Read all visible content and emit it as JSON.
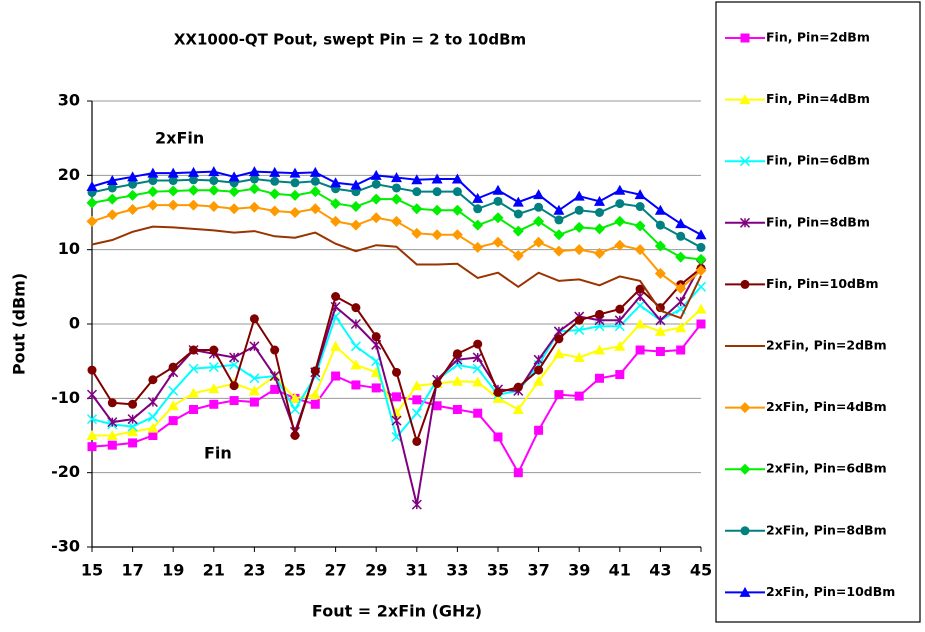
{
  "chart_data": {
    "type": "line",
    "title": "XX1000-QT Pout, swept Pin = 2 to 10dBm",
    "x_label": "Fout = 2xFin (GHz)",
    "y_label": "Pout (dBm)",
    "annotations": [
      "2xFin",
      "Fin"
    ],
    "x": [
      15,
      16,
      17,
      18,
      19,
      20,
      21,
      22,
      23,
      24,
      25,
      26,
      27,
      28,
      29,
      30,
      31,
      32,
      33,
      34,
      35,
      36,
      37,
      38,
      39,
      40,
      41,
      42,
      43,
      44,
      45
    ],
    "xlim": [
      15,
      45
    ],
    "xticks": [
      15,
      17,
      19,
      21,
      23,
      25,
      27,
      29,
      31,
      33,
      35,
      37,
      39,
      41,
      43,
      45
    ],
    "ylim": [
      -30,
      30
    ],
    "yticks": [
      -30,
      -20,
      -10,
      0,
      10,
      20,
      30
    ],
    "grid": true,
    "legend": "right",
    "series": [
      {
        "name": "Fin, Pin=2dBm",
        "color": "#ff00ff",
        "marker": "square",
        "values": [
          -16.5,
          -16.3,
          -16,
          -15,
          -13,
          -11.5,
          -10.8,
          -10.3,
          -10.5,
          -8.8,
          -10,
          -10.8,
          -7,
          -8.2,
          -8.6,
          -9.8,
          -10.2,
          -11,
          -11.5,
          -12,
          -15.2,
          -20,
          -14.3,
          -9.5,
          -9.7,
          -7.3,
          -6.8,
          -3.5,
          -3.7,
          -3.5,
          0
        ]
      },
      {
        "name": "Fin, Pin=4dBm",
        "color": "#ffff00",
        "marker": "triangle",
        "values": [
          -15,
          -15,
          -14.5,
          -14,
          -11,
          -9.3,
          -8.7,
          -8,
          -9,
          -7,
          -10,
          -9.5,
          -3,
          -5.5,
          -6.5,
          -12,
          -8.3,
          -8,
          -7.7,
          -7.8,
          -10,
          -11.5,
          -7.7,
          -4,
          -4.5,
          -3.5,
          -3,
          0,
          -1,
          -0.5,
          2
        ]
      },
      {
        "name": "Fin, Pin=6dBm",
        "color": "#00ffff",
        "marker": "x",
        "values": [
          -12.8,
          -13.5,
          -13.8,
          -12.5,
          -9,
          -6,
          -5.8,
          -5.5,
          -7.3,
          -7,
          -11.5,
          -7,
          1,
          -3,
          -5,
          -15.2,
          -12,
          -7.5,
          -5.5,
          -6,
          -9.5,
          -9,
          -5.5,
          -1,
          -0.8,
          -0.3,
          -0.3,
          2.5,
          0.5,
          2,
          5
        ]
      },
      {
        "name": "Fin, Pin=8dBm",
        "color": "#800080",
        "marker": "star",
        "values": [
          -9.5,
          -13.2,
          -12.8,
          -10.5,
          -6.5,
          -3.5,
          -4,
          -4.5,
          -3,
          -7,
          -14.5,
          -6.5,
          2.3,
          0,
          -2.8,
          -13,
          -24.3,
          -7.5,
          -4.8,
          -4.5,
          -8.8,
          -9,
          -4.8,
          -1,
          1,
          0.5,
          0.5,
          3.7,
          0.5,
          3,
          8
        ]
      },
      {
        "name": "Fin, Pin=10dBm",
        "color": "#800000",
        "marker": "circle",
        "values": [
          -6.2,
          -10.6,
          -10.8,
          -7.5,
          -5.8,
          -3.5,
          -3.5,
          -8.3,
          0.7,
          -3.5,
          -15,
          -6.3,
          3.7,
          2.2,
          -1.7,
          -6.5,
          -15.8,
          -8,
          -4,
          -2.7,
          -9.2,
          -8.5,
          -6.2,
          -2,
          0.5,
          1.3,
          2,
          4.7,
          2.2,
          5.3,
          7.5
        ]
      },
      {
        "name": "2xFin, Pin=2dBm",
        "color": "#993300",
        "marker": "none",
        "values": [
          10.7,
          11.3,
          12.4,
          13.1,
          13,
          12.8,
          12.6,
          12.3,
          12.5,
          11.8,
          11.6,
          12.3,
          10.8,
          9.8,
          10.6,
          10.4,
          8,
          8,
          8.1,
          6.2,
          6.9,
          5,
          6.9,
          5.8,
          6,
          5.2,
          6.4,
          5.8,
          1.8,
          0.8,
          6.5
        ]
      },
      {
        "name": "2xFin, Pin=4dBm",
        "color": "#ff9900",
        "marker": "diamond",
        "values": [
          13.8,
          14.7,
          15.4,
          16,
          16,
          16,
          15.8,
          15.5,
          15.7,
          15.2,
          15,
          15.5,
          13.8,
          13.3,
          14.3,
          13.8,
          12.2,
          12,
          12,
          10.3,
          11,
          9.2,
          11,
          9.8,
          10,
          9.5,
          10.6,
          10,
          6.8,
          4.8,
          7.2
        ]
      },
      {
        "name": "2xFin, Pin=6dBm",
        "color": "#00ee00",
        "marker": "diamond",
        "values": [
          16.3,
          16.8,
          17.3,
          17.8,
          17.9,
          18,
          18,
          17.8,
          18.2,
          17.5,
          17.3,
          17.8,
          16.2,
          15.8,
          16.8,
          16.8,
          15.5,
          15.3,
          15.3,
          13.3,
          14.3,
          12.5,
          13.8,
          12,
          13,
          12.8,
          13.8,
          13.2,
          10.5,
          9,
          8.7
        ]
      },
      {
        "name": "2xFin, Pin=8dBm",
        "color": "#008080",
        "marker": "circle",
        "values": [
          17.7,
          18.3,
          18.8,
          19.3,
          19.3,
          19.4,
          19.3,
          19,
          19.5,
          19.2,
          19,
          19.2,
          18.2,
          17.8,
          18.8,
          18.3,
          17.8,
          17.8,
          17.8,
          15.5,
          16.5,
          14.8,
          15.7,
          14,
          15.3,
          15,
          16.2,
          15.8,
          13.3,
          11.8,
          10.3
        ]
      },
      {
        "name": "2xFin, Pin=10dBm",
        "color": "#0000ff",
        "marker": "triangle",
        "values": [
          18.5,
          19.3,
          19.8,
          20.3,
          20.3,
          20.4,
          20.5,
          19.8,
          20.5,
          20.4,
          20.3,
          20.4,
          19,
          18.7,
          20,
          19.7,
          19.4,
          19.5,
          19.5,
          16.9,
          18,
          16.4,
          17.4,
          15.3,
          17.2,
          16.5,
          18,
          17.4,
          15.3,
          13.5,
          12
        ]
      }
    ]
  }
}
